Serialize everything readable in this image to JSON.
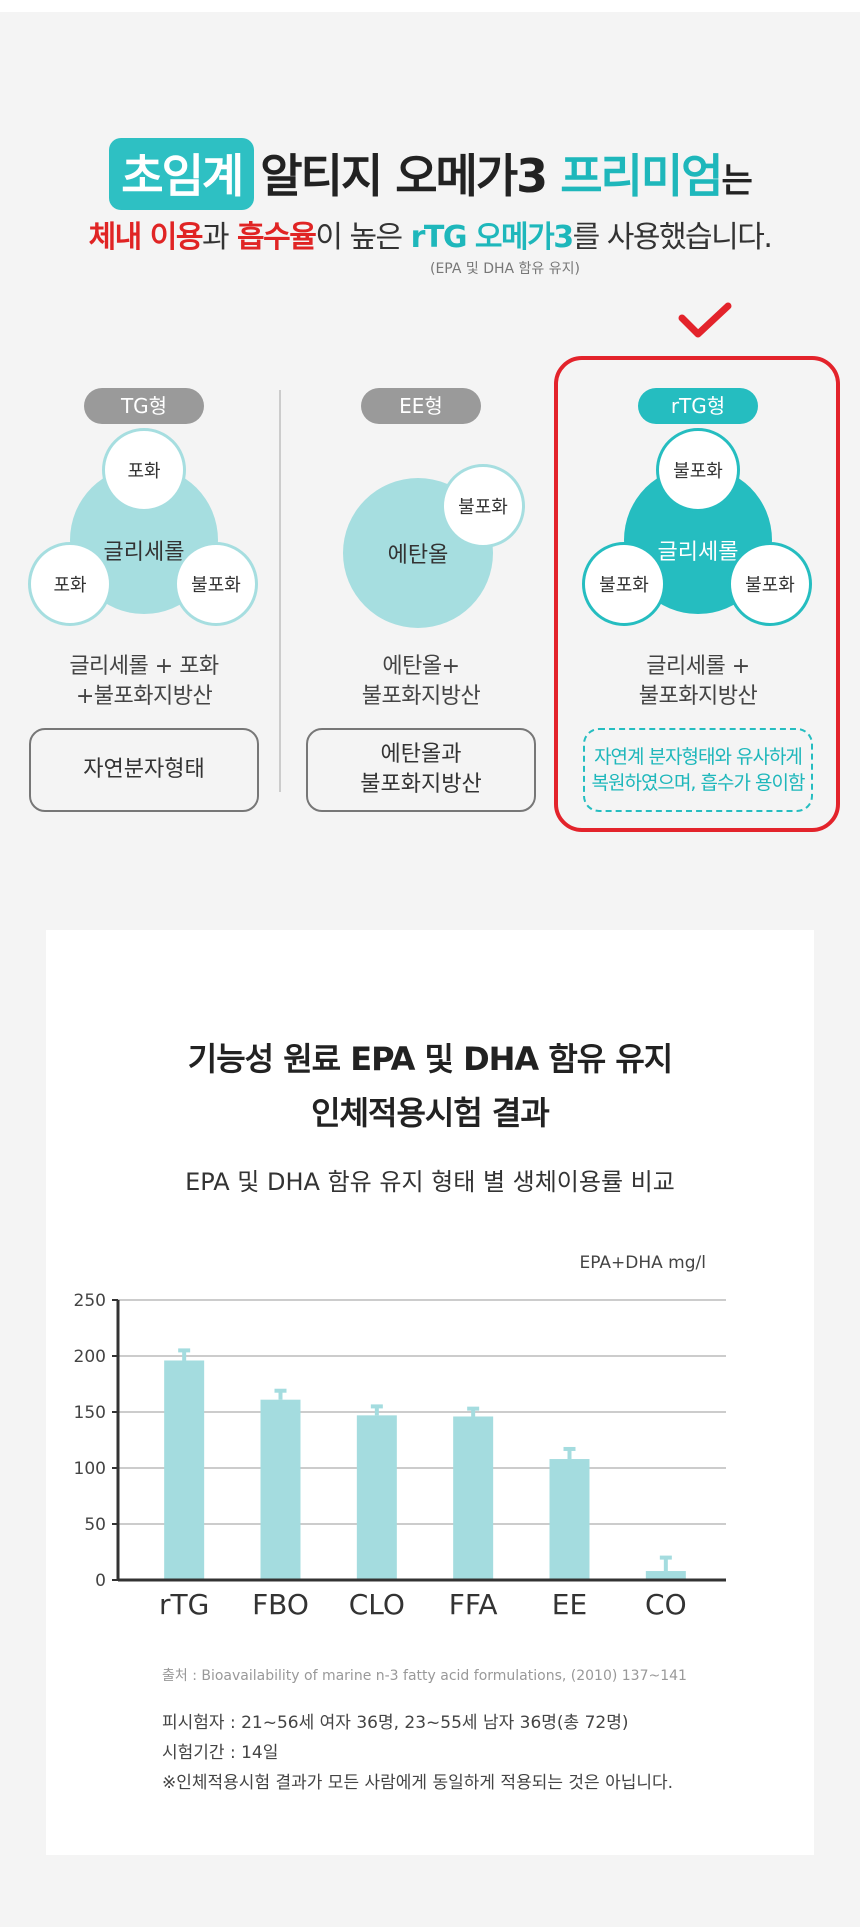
{
  "header": {
    "headline_badge": "초임계",
    "headline_middle": "알티지 오메가3",
    "headline_teal": "프리미엄",
    "headline_end": "는",
    "sub_red1": "체내 이용",
    "sub_part2": "과",
    "sub_red2": "흡수율",
    "sub_part3": "이 높은",
    "sub_teal": "rTG 오메가3",
    "sub_part4": "를 사용했습니다.",
    "note": "(EPA 및 DHA 함유 유지)"
  },
  "types": [
    {
      "pill": "TG형",
      "center": "글리세롤",
      "satellites": [
        "포화",
        "포화",
        "불포화"
      ],
      "desc_line1": "글리세롤 + 포화",
      "desc_line2": "+불포화지방산",
      "box_line1": "자연분자형태",
      "box_line2": ""
    },
    {
      "pill": "EE형",
      "center": "에탄올",
      "satellites": [
        "불포화"
      ],
      "desc_line1": "에탄올+",
      "desc_line2": "불포화지방산",
      "box_line1": "에탄올과",
      "box_line2": "불포화지방산"
    },
    {
      "pill": "rTG형",
      "center": "글리세롤",
      "satellites": [
        "불포화",
        "불포화",
        "불포화"
      ],
      "desc_line1": "글리세롤 +",
      "desc_line2": "불포화지방산",
      "box_line1": "자연계 분자형태와 유사하게",
      "box_line2": "복원하였으며, 흡수가 용이함"
    }
  ],
  "colors": {
    "accent": "#25bdc0",
    "highlight": "#e3232b",
    "bar": "#a4dcdf",
    "light_circle": "#a6dee0"
  },
  "chart_section": {
    "title_line1": "기능성 원료 EPA 및 DHA 함유 유지",
    "title_line2": "인체적용시험 결과"
  },
  "chart_data": {
    "type": "bar",
    "title": "EPA 및 DHA 함유 유지 형태 별 생체이용률 비교",
    "ylabel": "EPA+DHA mg/l",
    "xlabel": "",
    "categories": [
      "rTG",
      "FBO",
      "CLO",
      "FFA",
      "EE",
      "CO"
    ],
    "values": [
      196,
      161,
      147,
      146,
      108,
      8
    ],
    "errors": [
      9,
      8,
      8,
      7,
      9,
      12
    ],
    "ylim": [
      0,
      250
    ],
    "yticks": [
      0,
      50,
      100,
      150,
      200,
      250
    ],
    "grid": true
  },
  "source": "출처 : Bioavailability of marine n-3 fatty acid formulations, (2010) 137~141",
  "footnotes": [
    "피시험자 : 21~56세 여자 36명, 23~55세 남자 36명(총 72명)",
    "시험기간 : 14일",
    "※인체적용시험 결과가 모든 사람에게 동일하게 적용되는 것은 아닙니다."
  ]
}
